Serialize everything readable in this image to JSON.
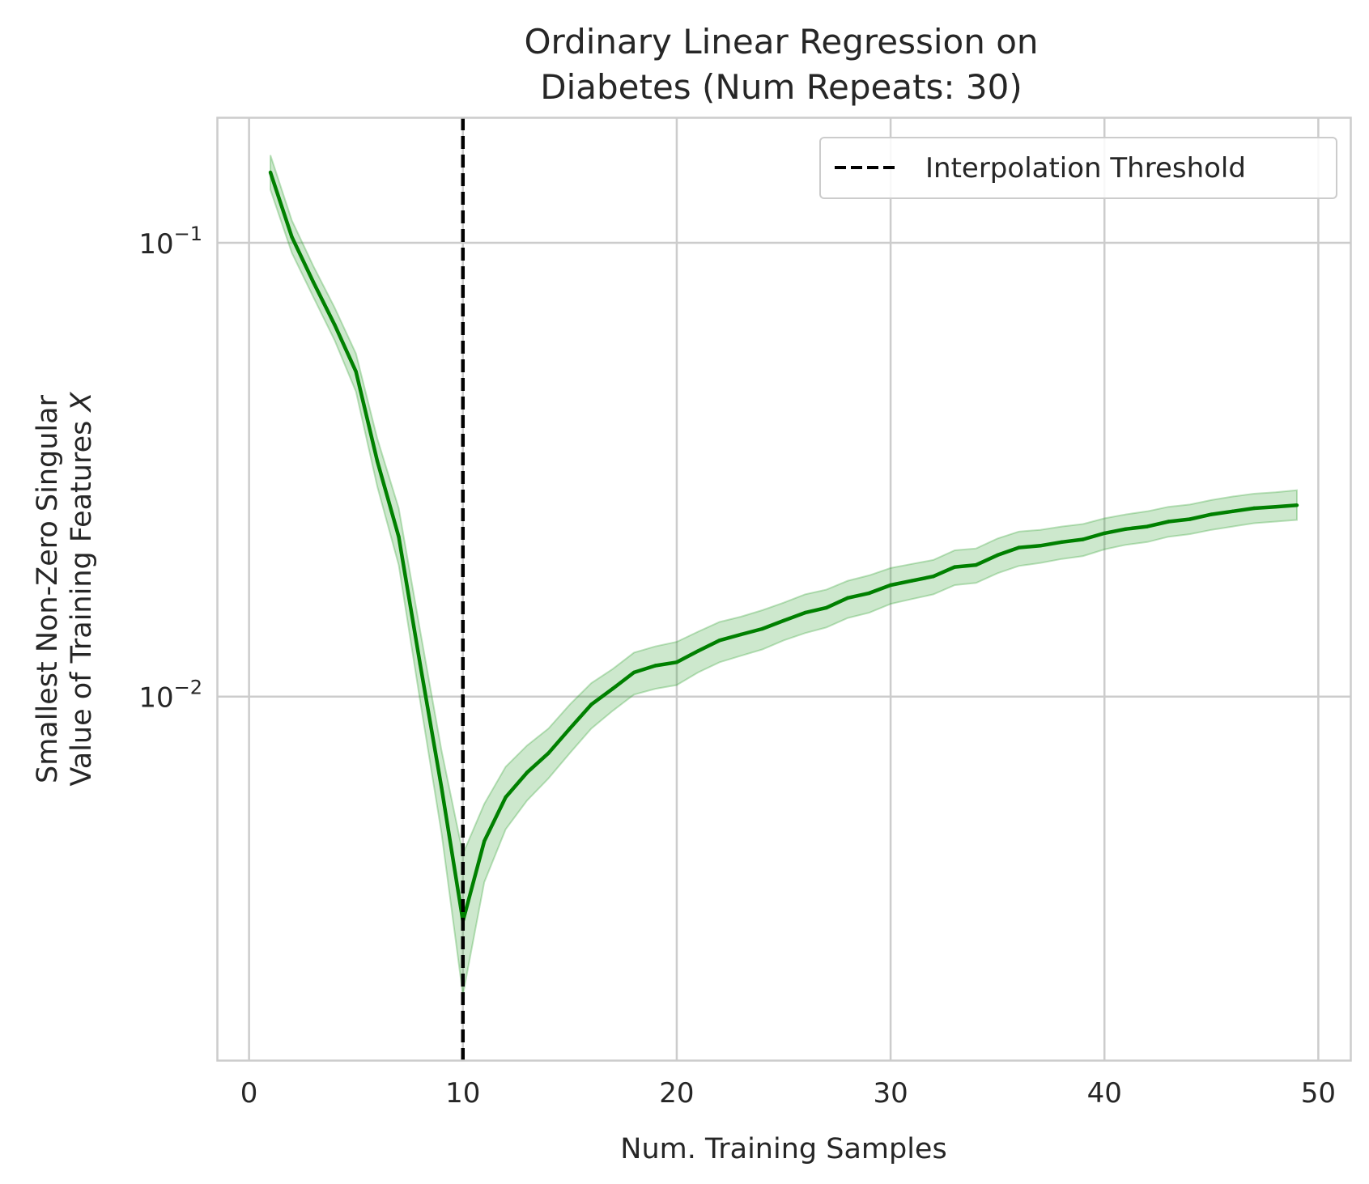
{
  "chart_data": {
    "type": "line",
    "title_lines": [
      "Ordinary Linear Regression on",
      "Diabetes (Num Repeats: 30)"
    ],
    "xlabel": "Num. Training Samples",
    "ylabel_lines": [
      "Smallest Non-Zero Singular",
      "Value of Training Features X"
    ],
    "xscale": "linear",
    "yscale": "log",
    "xlim": [
      -1.5,
      51.5
    ],
    "ylim": [
      0.00158,
      0.189
    ],
    "grid": true,
    "legend_position": "upper right",
    "x_ticks": [
      {
        "value": 0,
        "label": "0"
      },
      {
        "value": 10,
        "label": "10"
      },
      {
        "value": 20,
        "label": "20"
      },
      {
        "value": 30,
        "label": "30"
      },
      {
        "value": 40,
        "label": "40"
      },
      {
        "value": 50,
        "label": "50"
      }
    ],
    "y_ticks": [
      {
        "value": 0.1,
        "base": "10",
        "exp": "−1"
      },
      {
        "value": 0.01,
        "base": "10",
        "exp": "−2"
      }
    ],
    "colors": {
      "line": "#008000",
      "band": "#2ca02c",
      "threshold": "#000000",
      "grid": "#cccccc"
    },
    "series": [
      {
        "x": [
          1,
          2,
          3,
          4,
          5,
          6,
          7,
          8,
          9,
          10,
          11,
          12,
          13,
          14,
          15,
          16,
          17,
          18,
          19,
          20,
          21,
          22,
          23,
          24,
          25,
          26,
          27,
          28,
          29,
          30,
          31,
          32,
          33,
          34,
          35,
          36,
          37,
          38,
          39,
          40,
          41,
          42,
          43,
          44,
          45,
          46,
          47,
          48,
          49
        ],
        "values": [
          0.143,
          0.103,
          0.082,
          0.066,
          0.052,
          0.033,
          0.0225,
          0.0118,
          0.0063,
          0.0032,
          0.0048,
          0.006,
          0.0068,
          0.0075,
          0.0085,
          0.0096,
          0.0104,
          0.0113,
          0.0117,
          0.0119,
          0.0126,
          0.0133,
          0.0137,
          0.0141,
          0.0147,
          0.0153,
          0.0157,
          0.0165,
          0.0169,
          0.0176,
          0.018,
          0.0184,
          0.0193,
          0.0195,
          0.0205,
          0.0213,
          0.0215,
          0.0219,
          0.0222,
          0.0229,
          0.0234,
          0.0237,
          0.0243,
          0.0246,
          0.0252,
          0.0256,
          0.026,
          0.0262,
          0.0264
        ],
        "lower": [
          0.131,
          0.095,
          0.076,
          0.061,
          0.047,
          0.029,
          0.0195,
          0.0098,
          0.005,
          0.0022,
          0.0039,
          0.0051,
          0.0059,
          0.0066,
          0.0075,
          0.0085,
          0.0093,
          0.0101,
          0.0104,
          0.0106,
          0.0113,
          0.0119,
          0.0123,
          0.0127,
          0.0133,
          0.0138,
          0.0142,
          0.0149,
          0.0153,
          0.016,
          0.0164,
          0.0168,
          0.0176,
          0.0178,
          0.0187,
          0.0194,
          0.0197,
          0.0201,
          0.0204,
          0.0211,
          0.0216,
          0.0219,
          0.0225,
          0.0228,
          0.0233,
          0.0237,
          0.0241,
          0.0243,
          0.0245
        ],
        "upper": [
          0.156,
          0.112,
          0.089,
          0.072,
          0.057,
          0.037,
          0.026,
          0.014,
          0.0076,
          0.0045,
          0.0058,
          0.007,
          0.0078,
          0.0085,
          0.0096,
          0.0107,
          0.0115,
          0.0125,
          0.0129,
          0.0132,
          0.0139,
          0.0146,
          0.015,
          0.0155,
          0.0161,
          0.0168,
          0.0172,
          0.018,
          0.0185,
          0.0192,
          0.0196,
          0.02,
          0.021,
          0.0212,
          0.0223,
          0.0231,
          0.0233,
          0.0237,
          0.024,
          0.0247,
          0.0252,
          0.0256,
          0.0262,
          0.0265,
          0.0271,
          0.0276,
          0.028,
          0.0282,
          0.0285
        ]
      }
    ],
    "threshold": {
      "x": 10,
      "label": "Interpolation Threshold"
    }
  }
}
